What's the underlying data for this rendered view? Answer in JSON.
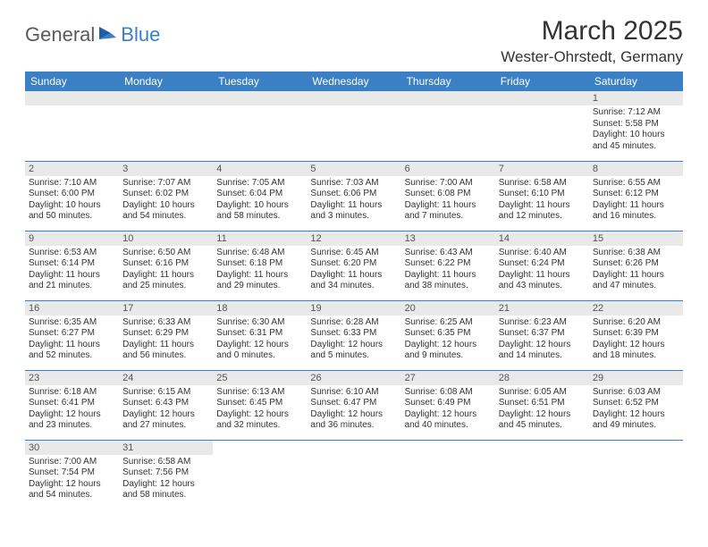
{
  "logo": {
    "word1": "General",
    "word2": "Blue"
  },
  "title": "March 2025",
  "location": "Wester-Ohrstedt, Germany",
  "colors": {
    "header_bg": "#3b7fc4",
    "header_text": "#ffffff",
    "daynum_bg": "#e9e9e9",
    "rule": "#3b7fc4",
    "text": "#333333",
    "logo_gray": "#5a5a5a",
    "logo_blue": "#3b7fc4",
    "page_bg": "#ffffff"
  },
  "dayHeaders": [
    "Sunday",
    "Monday",
    "Tuesday",
    "Wednesday",
    "Thursday",
    "Friday",
    "Saturday"
  ],
  "weeks": [
    [
      null,
      null,
      null,
      null,
      null,
      null,
      {
        "n": "1",
        "sr": "7:12 AM",
        "ss": "5:58 PM",
        "dl": "10 hours and 45 minutes."
      }
    ],
    [
      {
        "n": "2",
        "sr": "7:10 AM",
        "ss": "6:00 PM",
        "dl": "10 hours and 50 minutes."
      },
      {
        "n": "3",
        "sr": "7:07 AM",
        "ss": "6:02 PM",
        "dl": "10 hours and 54 minutes."
      },
      {
        "n": "4",
        "sr": "7:05 AM",
        "ss": "6:04 PM",
        "dl": "10 hours and 58 minutes."
      },
      {
        "n": "5",
        "sr": "7:03 AM",
        "ss": "6:06 PM",
        "dl": "11 hours and 3 minutes."
      },
      {
        "n": "6",
        "sr": "7:00 AM",
        "ss": "6:08 PM",
        "dl": "11 hours and 7 minutes."
      },
      {
        "n": "7",
        "sr": "6:58 AM",
        "ss": "6:10 PM",
        "dl": "11 hours and 12 minutes."
      },
      {
        "n": "8",
        "sr": "6:55 AM",
        "ss": "6:12 PM",
        "dl": "11 hours and 16 minutes."
      }
    ],
    [
      {
        "n": "9",
        "sr": "6:53 AM",
        "ss": "6:14 PM",
        "dl": "11 hours and 21 minutes."
      },
      {
        "n": "10",
        "sr": "6:50 AM",
        "ss": "6:16 PM",
        "dl": "11 hours and 25 minutes."
      },
      {
        "n": "11",
        "sr": "6:48 AM",
        "ss": "6:18 PM",
        "dl": "11 hours and 29 minutes."
      },
      {
        "n": "12",
        "sr": "6:45 AM",
        "ss": "6:20 PM",
        "dl": "11 hours and 34 minutes."
      },
      {
        "n": "13",
        "sr": "6:43 AM",
        "ss": "6:22 PM",
        "dl": "11 hours and 38 minutes."
      },
      {
        "n": "14",
        "sr": "6:40 AM",
        "ss": "6:24 PM",
        "dl": "11 hours and 43 minutes."
      },
      {
        "n": "15",
        "sr": "6:38 AM",
        "ss": "6:26 PM",
        "dl": "11 hours and 47 minutes."
      }
    ],
    [
      {
        "n": "16",
        "sr": "6:35 AM",
        "ss": "6:27 PM",
        "dl": "11 hours and 52 minutes."
      },
      {
        "n": "17",
        "sr": "6:33 AM",
        "ss": "6:29 PM",
        "dl": "11 hours and 56 minutes."
      },
      {
        "n": "18",
        "sr": "6:30 AM",
        "ss": "6:31 PM",
        "dl": "12 hours and 0 minutes."
      },
      {
        "n": "19",
        "sr": "6:28 AM",
        "ss": "6:33 PM",
        "dl": "12 hours and 5 minutes."
      },
      {
        "n": "20",
        "sr": "6:25 AM",
        "ss": "6:35 PM",
        "dl": "12 hours and 9 minutes."
      },
      {
        "n": "21",
        "sr": "6:23 AM",
        "ss": "6:37 PM",
        "dl": "12 hours and 14 minutes."
      },
      {
        "n": "22",
        "sr": "6:20 AM",
        "ss": "6:39 PM",
        "dl": "12 hours and 18 minutes."
      }
    ],
    [
      {
        "n": "23",
        "sr": "6:18 AM",
        "ss": "6:41 PM",
        "dl": "12 hours and 23 minutes."
      },
      {
        "n": "24",
        "sr": "6:15 AM",
        "ss": "6:43 PM",
        "dl": "12 hours and 27 minutes."
      },
      {
        "n": "25",
        "sr": "6:13 AM",
        "ss": "6:45 PM",
        "dl": "12 hours and 32 minutes."
      },
      {
        "n": "26",
        "sr": "6:10 AM",
        "ss": "6:47 PM",
        "dl": "12 hours and 36 minutes."
      },
      {
        "n": "27",
        "sr": "6:08 AM",
        "ss": "6:49 PM",
        "dl": "12 hours and 40 minutes."
      },
      {
        "n": "28",
        "sr": "6:05 AM",
        "ss": "6:51 PM",
        "dl": "12 hours and 45 minutes."
      },
      {
        "n": "29",
        "sr": "6:03 AM",
        "ss": "6:52 PM",
        "dl": "12 hours and 49 minutes."
      }
    ],
    [
      {
        "n": "30",
        "sr": "7:00 AM",
        "ss": "7:54 PM",
        "dl": "12 hours and 54 minutes."
      },
      {
        "n": "31",
        "sr": "6:58 AM",
        "ss": "7:56 PM",
        "dl": "12 hours and 58 minutes."
      },
      null,
      null,
      null,
      null,
      null
    ]
  ],
  "labels": {
    "sunrise": "Sunrise:",
    "sunset": "Sunset:",
    "daylight": "Daylight:"
  }
}
